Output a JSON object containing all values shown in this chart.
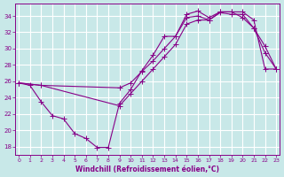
{
  "xlabel": "Windchill (Refroidissement éolien,°C)",
  "bg_color": "#c8e8e8",
  "grid_color": "#ffffff",
  "line_color": "#880088",
  "xlim": [
    -0.3,
    23.3
  ],
  "ylim": [
    17.0,
    35.5
  ],
  "yticks": [
    18,
    20,
    22,
    24,
    26,
    28,
    30,
    32,
    34
  ],
  "xticks": [
    0,
    1,
    2,
    3,
    4,
    5,
    6,
    7,
    8,
    9,
    10,
    11,
    12,
    13,
    14,
    15,
    16,
    17,
    18,
    19,
    20,
    21,
    22,
    23
  ],
  "curve1_x": [
    0,
    1,
    2,
    3,
    4,
    5,
    6,
    7,
    8,
    9,
    10,
    11,
    12,
    13,
    14,
    15,
    16,
    17,
    18,
    19,
    20,
    21,
    22,
    23
  ],
  "curve1_y": [
    25.8,
    25.5,
    23.5,
    21.8,
    21.4,
    19.6,
    19.0,
    17.9,
    17.9,
    23.3,
    25.0,
    27.3,
    29.2,
    31.5,
    31.5,
    34.2,
    34.6,
    33.8,
    34.5,
    34.5,
    33.8,
    32.5,
    30.3,
    27.5
  ],
  "curve2_x": [
    0,
    2,
    9,
    10,
    11,
    12,
    13,
    14,
    15,
    16,
    17,
    18,
    19,
    20,
    21,
    22,
    23
  ],
  "curve2_y": [
    25.8,
    25.5,
    25.2,
    25.8,
    27.2,
    28.5,
    30.0,
    31.5,
    33.8,
    34.0,
    33.5,
    34.4,
    34.2,
    34.2,
    32.5,
    29.5,
    27.5
  ],
  "curve3_x": [
    0,
    2,
    9,
    10,
    11,
    12,
    13,
    14,
    15,
    16,
    17,
    18,
    19,
    20,
    21,
    22,
    23
  ],
  "curve3_y": [
    25.8,
    25.5,
    23.0,
    24.5,
    26.0,
    27.5,
    29.0,
    30.5,
    33.0,
    33.5,
    33.5,
    34.5,
    34.5,
    34.5,
    33.5,
    27.5,
    27.5
  ]
}
